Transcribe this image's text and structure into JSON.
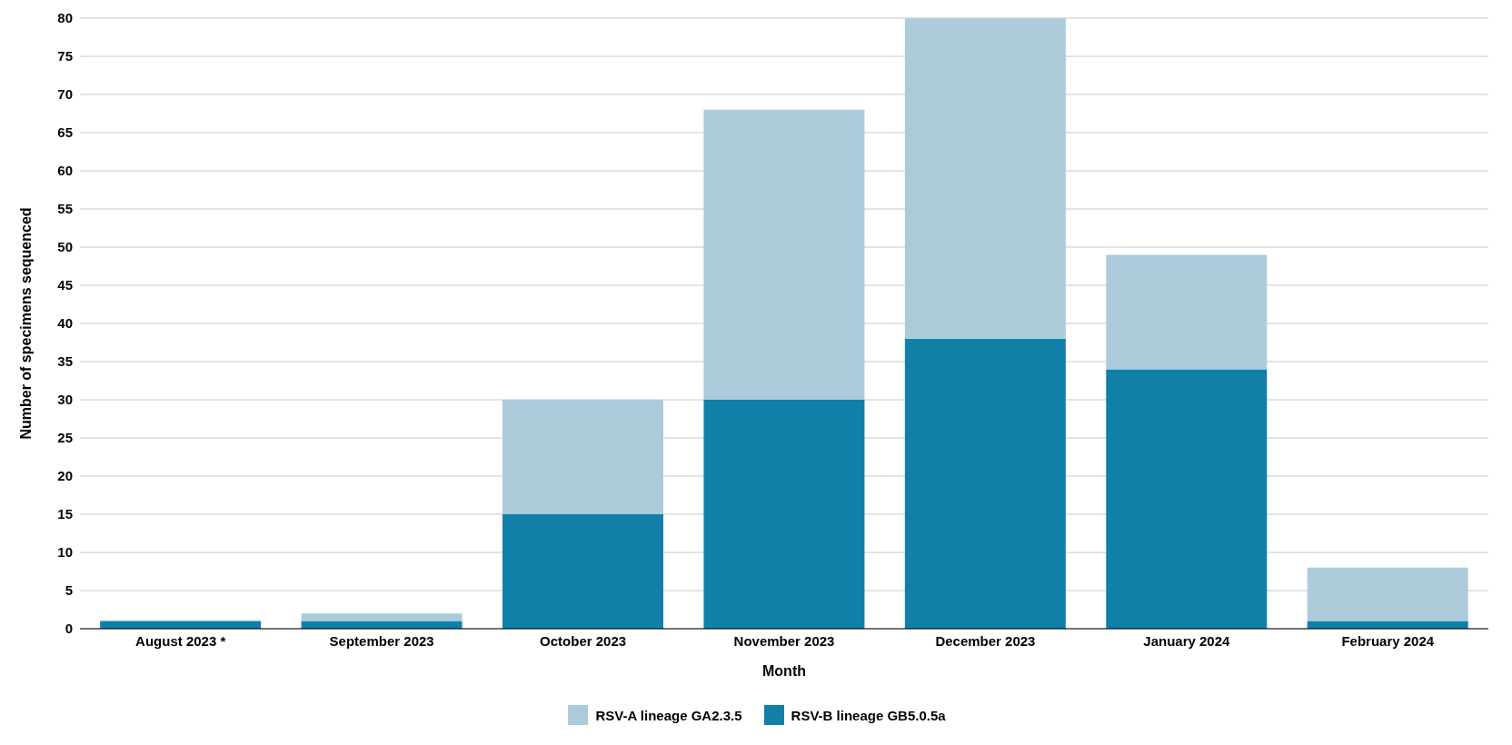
{
  "chart_data": {
    "type": "bar",
    "stacked": true,
    "xlabel": "Month",
    "ylabel": "Number of specimens sequenced",
    "categories": [
      "August 2023 *",
      "September 2023",
      "October 2023",
      "November 2023",
      "December 2023",
      "January 2024",
      "February 2024"
    ],
    "series": [
      {
        "name": "RSV-B lineage GB5.0.5a",
        "color": "#1180a8",
        "values": [
          1,
          1,
          15,
          30,
          38,
          34,
          1
        ]
      },
      {
        "name": "RSV-A lineage GA2.3.5",
        "color": "#abcbdb",
        "values": [
          0,
          1,
          15,
          38,
          42,
          15,
          7
        ]
      }
    ],
    "ylim": [
      0,
      80
    ],
    "yticks": [
      0,
      5,
      10,
      15,
      20,
      25,
      30,
      35,
      40,
      45,
      50,
      55,
      60,
      65,
      70,
      75,
      80
    ],
    "grid": "y",
    "legend": "bottom"
  }
}
